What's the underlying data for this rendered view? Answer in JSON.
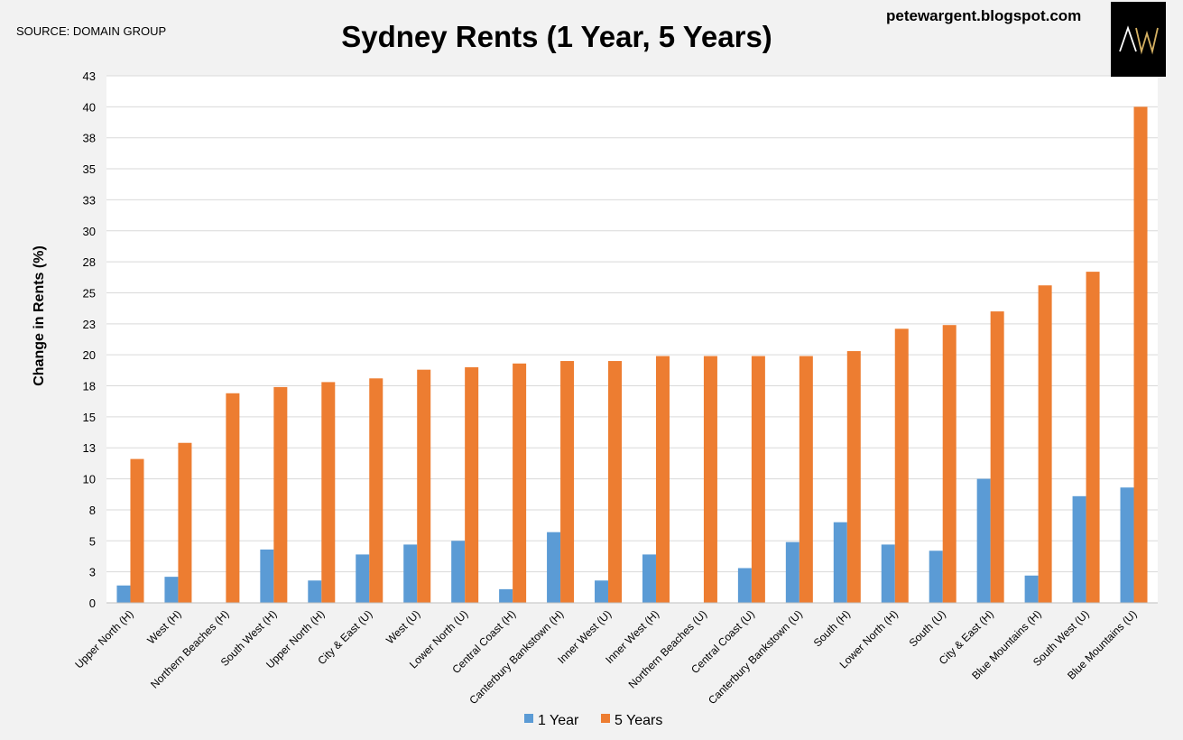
{
  "source_note": "SOURCE: DOMAIN GROUP",
  "blog_name": "petewargent.blogspot.com",
  "logo_text": "AW",
  "colors": {
    "one_year": "#5b9bd5",
    "five_years": "#ed7d31",
    "grid": "#d9d9d9",
    "background": "#f2f2f2",
    "plot_bg": "#ffffff"
  },
  "chart_data": {
    "type": "bar",
    "title": "Sydney Rents (1 Year, 5 Years)",
    "xlabel": "",
    "ylabel": "Change in Rents (%)",
    "ylim": [
      0,
      42.5
    ],
    "y_ticks": [
      0,
      2.5,
      5,
      7.5,
      10,
      12.5,
      15,
      17.5,
      20,
      22.5,
      25,
      27.5,
      30,
      32.5,
      35,
      37.5,
      40,
      42.5
    ],
    "y_tick_labels": [
      "0",
      "3",
      "5",
      "8",
      "10",
      "13",
      "15",
      "18",
      "20",
      "23",
      "25",
      "28",
      "30",
      "33",
      "35",
      "38",
      "40",
      "43"
    ],
    "categories": [
      "Upper North (H)",
      "West (H)",
      "Northern Beaches (H)",
      "South West (H)",
      "Upper North (H)",
      "City & East (U)",
      "West (U)",
      "Lower North (U)",
      "Central Coast (H)",
      "Canterbury Bankstown (H)",
      "Inner West (U)",
      "Inner West (H)",
      "Northern Beaches (U)",
      "Central Coast (U)",
      "Canterbury Bankstown (U)",
      "South (H)",
      "Lower North (H)",
      "South (U)",
      "City & East (H)",
      "Blue Mountains (H)",
      "South West (U)",
      "Blue Mountains (U)"
    ],
    "series": [
      {
        "name": "1 Year",
        "values": [
          1.4,
          2.1,
          0,
          4.3,
          1.8,
          3.9,
          4.7,
          5.0,
          1.1,
          5.7,
          1.8,
          3.9,
          0,
          2.8,
          4.9,
          6.5,
          4.7,
          4.2,
          10.0,
          2.2,
          8.6,
          9.3
        ]
      },
      {
        "name": "5 Years",
        "values": [
          11.6,
          12.9,
          16.9,
          17.4,
          17.8,
          18.1,
          18.8,
          19.0,
          19.3,
          19.5,
          19.5,
          19.9,
          19.9,
          19.9,
          19.9,
          20.3,
          22.1,
          22.4,
          23.5,
          25.6,
          26.7,
          40.0
        ]
      }
    ],
    "legend_position": "bottom-center",
    "grid": true
  }
}
